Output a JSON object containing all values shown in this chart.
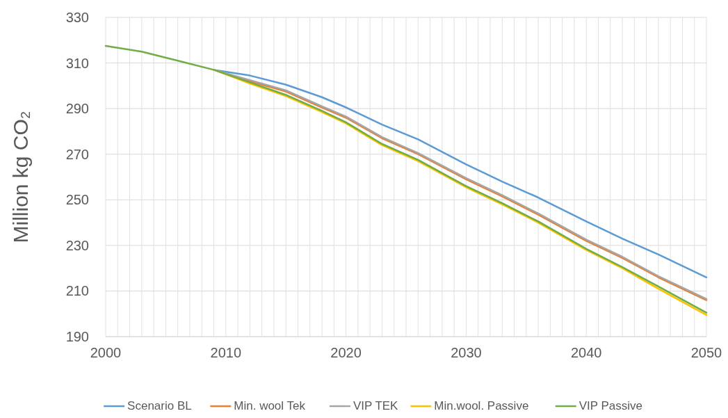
{
  "chart_data": {
    "type": "line",
    "ylabel": "Million kg CO₂",
    "x": [
      2000,
      2003,
      2006,
      2009,
      2012,
      2015,
      2018,
      2020,
      2023,
      2026,
      2030,
      2033,
      2036,
      2040,
      2043,
      2046,
      2050
    ],
    "series": [
      {
        "name": "Scenario BL",
        "color": "#5b9bd5",
        "values": [
          null,
          null,
          null,
          307,
          304.5,
          300.5,
          295,
          290.5,
          283,
          276.5,
          265.5,
          258,
          251,
          240.5,
          233,
          226,
          216
        ]
      },
      {
        "name": "Min. wool Tek",
        "color": "#ed7d31",
        "values": [
          null,
          null,
          null,
          307,
          302,
          297.5,
          290.5,
          286,
          277,
          270,
          259,
          251.5,
          243.5,
          232,
          224.5,
          216,
          206
        ]
      },
      {
        "name": "VIP TEK",
        "color": "#a5a5a5",
        "values": [
          null,
          null,
          null,
          307,
          302.5,
          298,
          291,
          286.5,
          277.5,
          270.5,
          259.5,
          252,
          244,
          232.5,
          225,
          216.5,
          206.5
        ]
      },
      {
        "name": "Min.wool. Passive",
        "color": "#ffc000",
        "values": [
          null,
          null,
          null,
          307,
          301,
          295.5,
          288.5,
          283.5,
          274,
          267,
          255.5,
          248,
          240,
          228,
          220,
          211,
          199.5
        ]
      },
      {
        "name": "VIP Passive",
        "color": "#70ad47",
        "values": [
          317.5,
          315,
          311,
          307,
          301.5,
          296,
          289,
          284,
          274.5,
          267.5,
          256,
          248.5,
          240.5,
          228.5,
          220.5,
          212,
          200.5
        ]
      }
    ],
    "xlim": [
      2000,
      2050
    ],
    "xticks": [
      2000,
      {
        "value": 2001,
        "label": null
      },
      {
        "value": 2002,
        "label": null
      },
      {
        "value": 2003,
        "label": null
      },
      {
        "value": 2004,
        "label": null
      },
      {
        "value": 2005,
        "label": null
      },
      {
        "value": 2006,
        "label": null
      },
      {
        "value": 2007,
        "label": null
      },
      {
        "value": 2008,
        "label": null
      },
      {
        "value": 2009,
        "label": null
      },
      2010,
      {
        "value": 2011,
        "label": null
      },
      {
        "value": 2012,
        "label": null
      },
      {
        "value": 2013,
        "label": null
      },
      {
        "value": 2014,
        "label": null
      },
      {
        "value": 2015,
        "label": null
      },
      {
        "value": 2016,
        "label": null
      },
      {
        "value": 2017,
        "label": null
      },
      {
        "value": 2018,
        "label": null
      },
      {
        "value": 2019,
        "label": null
      },
      2020,
      {
        "value": 2021,
        "label": null
      },
      {
        "value": 2022,
        "label": null
      },
      {
        "value": 2023,
        "label": null
      },
      {
        "value": 2024,
        "label": null
      },
      {
        "value": 2025,
        "label": null
      },
      {
        "value": 2026,
        "label": null
      },
      {
        "value": 2027,
        "label": null
      },
      {
        "value": 2028,
        "label": null
      },
      {
        "value": 2029,
        "label": null
      },
      2030,
      {
        "value": 2031,
        "label": null
      },
      {
        "value": 2032,
        "label": null
      },
      {
        "value": 2033,
        "label": null
      },
      {
        "value": 2034,
        "label": null
      },
      {
        "value": 2035,
        "label": null
      },
      {
        "value": 2036,
        "label": null
      },
      {
        "value": 2037,
        "label": null
      },
      {
        "value": 2038,
        "label": null
      },
      {
        "value": 2039,
        "label": null
      },
      2040,
      {
        "value": 2041,
        "label": null
      },
      {
        "value": 2042,
        "label": null
      },
      {
        "value": 2043,
        "label": null
      },
      {
        "value": 2044,
        "label": null
      },
      {
        "value": 2045,
        "label": null
      },
      {
        "value": 2046,
        "label": null
      },
      {
        "value": 2047,
        "label": null
      },
      {
        "value": 2048,
        "label": null
      },
      {
        "value": 2049,
        "label": null
      },
      2050
    ],
    "ylim": [
      190,
      330
    ],
    "yticks": [
      190,
      210,
      230,
      250,
      270,
      290,
      310,
      330
    ],
    "grid": true,
    "legend": "bottom",
    "marker": "none",
    "line_style": "solid"
  }
}
